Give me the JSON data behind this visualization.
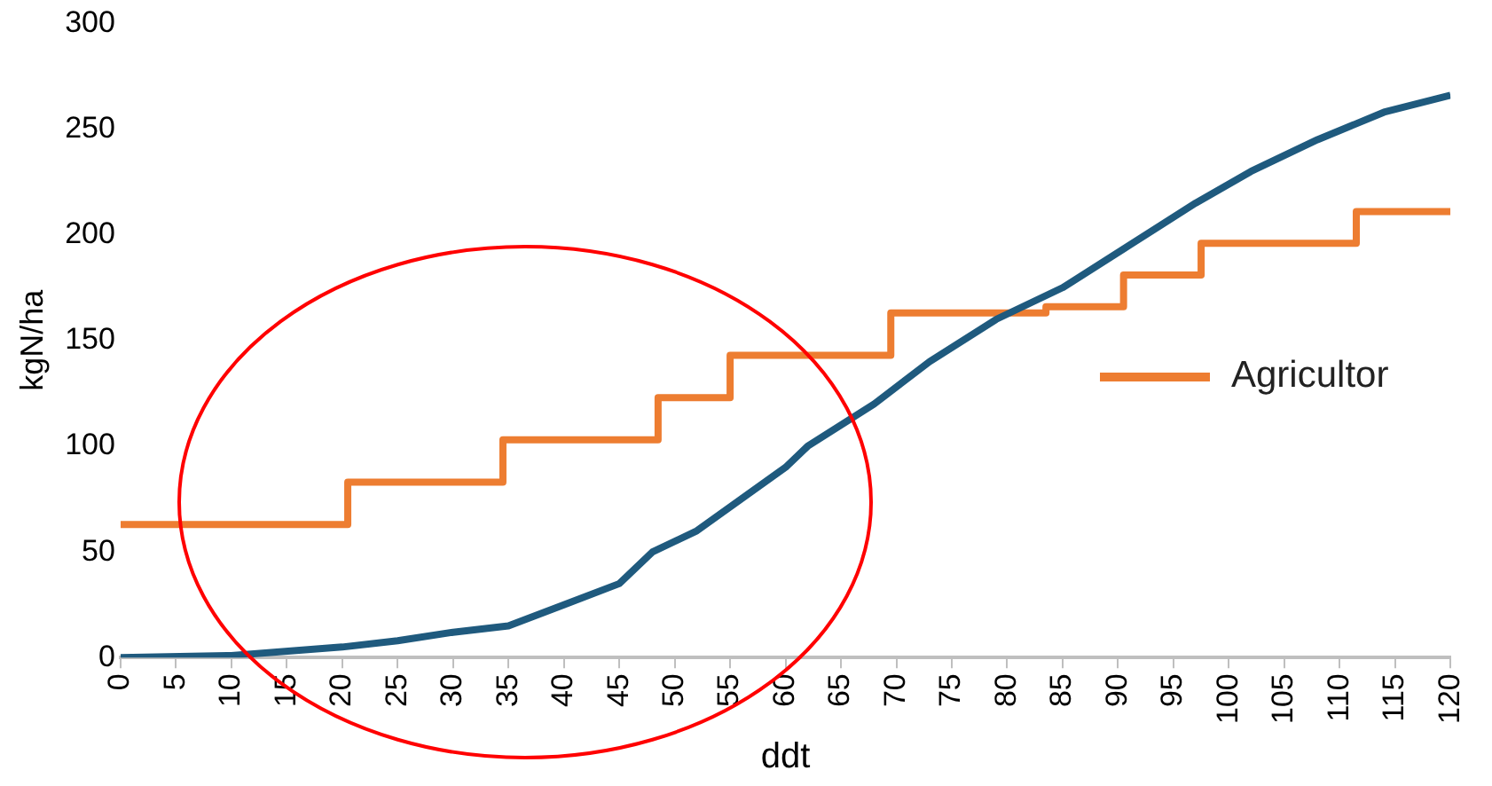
{
  "chart_data": {
    "type": "line",
    "xlabel": "ddt",
    "ylabel": "kgN/ha",
    "xlim": [
      0,
      120
    ],
    "xticks": [
      0,
      5,
      10,
      15,
      20,
      25,
      30,
      35,
      40,
      45,
      50,
      55,
      60,
      65,
      70,
      75,
      80,
      85,
      90,
      95,
      100,
      105,
      110,
      115,
      120
    ],
    "ylim": [
      0,
      300
    ],
    "yticks": [
      0,
      50,
      100,
      150,
      200,
      250,
      300
    ],
    "grid": false,
    "legend": "right",
    "marker": "none",
    "series": [
      {
        "color": "#1f5a7e",
        "x": [
          0,
          10,
          20,
          25,
          30,
          35,
          40,
          45,
          48,
          52,
          56,
          60,
          62,
          68,
          73,
          79,
          85,
          91,
          97,
          102,
          108,
          114,
          120
        ],
        "values": [
          0,
          1,
          5,
          8,
          12,
          15,
          25,
          35,
          50,
          60,
          75,
          90,
          100,
          120,
          140,
          160,
          175,
          195,
          215,
          230,
          245,
          258,
          266
        ]
      },
      {
        "name": "Agricultor",
        "type": "step",
        "color": "#ed7d31",
        "x": [
          0,
          20.5,
          34.5,
          48.5,
          55,
          69.5,
          83.5,
          90.5,
          97.5,
          111.5,
          120
        ],
        "values": [
          63,
          83,
          103,
          123,
          143,
          163,
          166,
          181,
          196,
          211,
          211
        ]
      }
    ]
  }
}
